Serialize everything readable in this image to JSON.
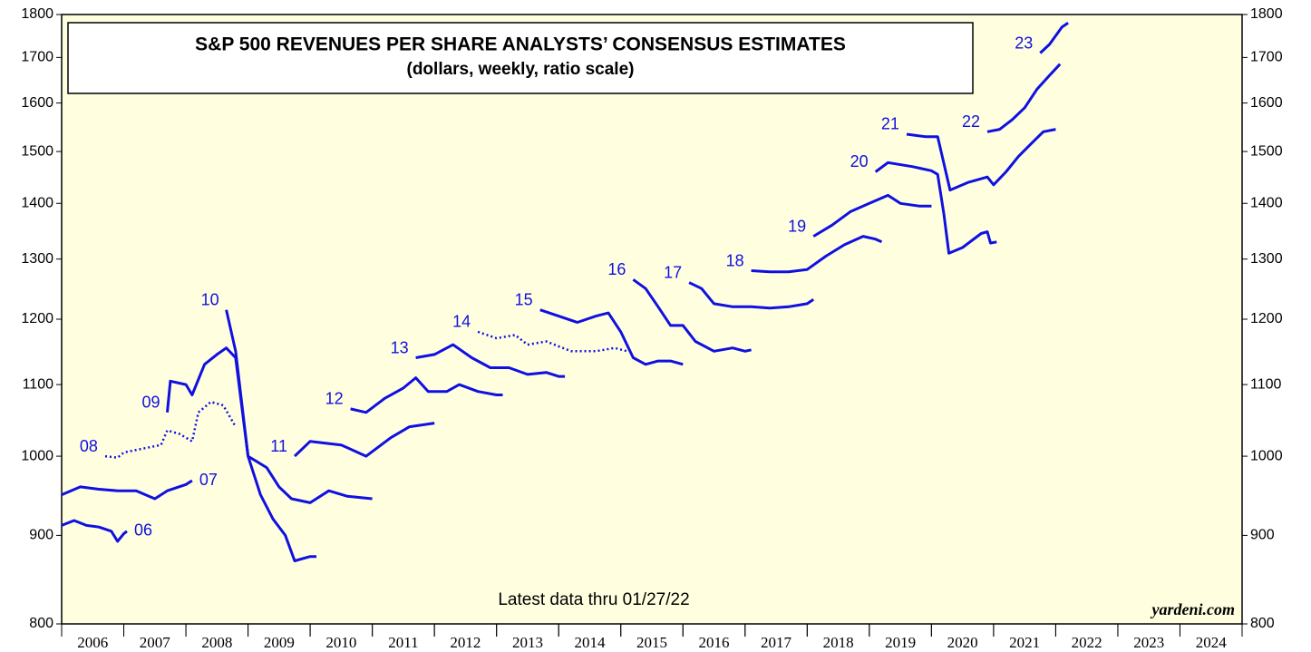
{
  "chart_data": {
    "type": "line",
    "title": "S&P 500 REVENUES PER SHARE ANALYSTS’ CONSENSUS ESTIMATES",
    "subtitle": "(dollars, weekly, ratio scale)",
    "annotation": "Latest data thru 01/27/22",
    "source": "yardeni.com",
    "log_scale": true,
    "background": "#ffffe0",
    "xlim": [
      2006,
      2025
    ],
    "xticks": [
      {
        "value": 2006.5,
        "label": "2006"
      },
      {
        "value": 2007.5,
        "label": "2007"
      },
      {
        "value": 2008.5,
        "label": "2008"
      },
      {
        "value": 2009.5,
        "label": "2009"
      },
      {
        "value": 2010.5,
        "label": "2010"
      },
      {
        "value": 2011.5,
        "label": "2011"
      },
      {
        "value": 2012.5,
        "label": "2012"
      },
      {
        "value": 2013.5,
        "label": "2013"
      },
      {
        "value": 2014.5,
        "label": "2014"
      },
      {
        "value": 2015.5,
        "label": "2015"
      },
      {
        "value": 2016.5,
        "label": "2016"
      },
      {
        "value": 2017.5,
        "label": "2017"
      },
      {
        "value": 2018.5,
        "label": "2018"
      },
      {
        "value": 2019.5,
        "label": "2019"
      },
      {
        "value": 2020.5,
        "label": "2020"
      },
      {
        "value": 2021.5,
        "label": "2021"
      },
      {
        "value": 2022.5,
        "label": "2022"
      },
      {
        "value": 2023.5,
        "label": "2023"
      },
      {
        "value": 2024.5,
        "label": "2024"
      }
    ],
    "ylim": [
      800,
      1800
    ],
    "yticks": [
      800,
      900,
      1000,
      1100,
      1200,
      1300,
      1400,
      1500,
      1600,
      1700,
      1800
    ],
    "series": [
      {
        "name": "06",
        "color": "#1010e0",
        "style": "solid",
        "x": [
          2006.0,
          2006.2,
          2006.4,
          2006.6,
          2006.8,
          2006.9,
          2007.0,
          2007.05
        ],
        "values": [
          912,
          918,
          912,
          910,
          905,
          893,
          902,
          905
        ]
      },
      {
        "name": "07",
        "color": "#1010e0",
        "style": "solid",
        "x": [
          2006.0,
          2006.3,
          2006.6,
          2006.9,
          2007.2,
          2007.5,
          2007.7,
          2008.0,
          2008.1
        ],
        "values": [
          950,
          960,
          957,
          955,
          955,
          945,
          955,
          963,
          968
        ]
      },
      {
        "name": "08",
        "color": "#1010e0",
        "style": "dotted",
        "x": [
          2006.7,
          2006.9,
          2007.0,
          2007.3,
          2007.6,
          2007.7,
          2007.9,
          2008.1,
          2008.2,
          2008.4,
          2008.6,
          2008.8
        ],
        "values": [
          1000,
          998,
          1005,
          1010,
          1015,
          1035,
          1030,
          1020,
          1060,
          1075,
          1070,
          1040
        ]
      },
      {
        "name": "09",
        "color": "#1010e0",
        "style": "solid",
        "x": [
          2007.7,
          2007.75,
          2008.0,
          2008.1,
          2008.3,
          2008.5,
          2008.65,
          2008.8,
          2009.0,
          2009.3,
          2009.5,
          2009.7,
          2010.0,
          2010.3,
          2010.6,
          2011.0
        ],
        "values": [
          1060,
          1105,
          1100,
          1085,
          1130,
          1145,
          1155,
          1140,
          1000,
          985,
          960,
          945,
          940,
          955,
          948,
          945
        ]
      },
      {
        "name": "10",
        "color": "#1010e0",
        "style": "solid",
        "x": [
          2008.65,
          2008.8,
          2009.0,
          2009.2,
          2009.4,
          2009.6,
          2009.75,
          2010.0,
          2010.1
        ],
        "values": [
          1215,
          1150,
          1000,
          950,
          920,
          900,
          870,
          875,
          875
        ]
      },
      {
        "name": "11",
        "color": "#1010e0",
        "style": "solid",
        "x": [
          2009.75,
          2010.0,
          2010.5,
          2010.9,
          2011.3,
          2011.6,
          2012.0
        ],
        "values": [
          1000,
          1020,
          1015,
          1000,
          1025,
          1040,
          1045
        ]
      },
      {
        "name": "12",
        "color": "#1010e0",
        "style": "solid",
        "x": [
          2010.65,
          2010.9,
          2011.2,
          2011.5,
          2011.7,
          2011.9,
          2012.2,
          2012.4,
          2012.7,
          2013.0,
          2013.1
        ],
        "values": [
          1065,
          1060,
          1080,
          1095,
          1110,
          1090,
          1090,
          1100,
          1090,
          1085,
          1085
        ]
      },
      {
        "name": "13",
        "color": "#1010e0",
        "style": "solid",
        "x": [
          2011.7,
          2012.0,
          2012.3,
          2012.6,
          2012.9,
          2013.2,
          2013.5,
          2013.8,
          2014.0,
          2014.1
        ],
        "values": [
          1140,
          1145,
          1160,
          1140,
          1125,
          1125,
          1115,
          1118,
          1112,
          1112
        ]
      },
      {
        "name": "14",
        "color": "#1010e0",
        "style": "dotted",
        "x": [
          2012.7,
          2013.0,
          2013.3,
          2013.5,
          2013.8,
          2014.2,
          2014.6,
          2014.9,
          2015.1
        ],
        "values": [
          1180,
          1170,
          1175,
          1160,
          1165,
          1150,
          1150,
          1155,
          1150
        ]
      },
      {
        "name": "15",
        "color": "#1010e0",
        "style": "solid",
        "x": [
          2013.7,
          2014.0,
          2014.3,
          2014.6,
          2014.8,
          2015.0,
          2015.2,
          2015.4,
          2015.6,
          2015.8,
          2016.0
        ],
        "values": [
          1215,
          1205,
          1195,
          1205,
          1210,
          1180,
          1140,
          1130,
          1135,
          1135,
          1130
        ]
      },
      {
        "name": "16",
        "color": "#1010e0",
        "style": "solid",
        "x": [
          2015.2,
          2015.4,
          2015.6,
          2015.8,
          2016.0,
          2016.2,
          2016.5,
          2016.8,
          2017.0,
          2017.1
        ],
        "values": [
          1265,
          1250,
          1220,
          1190,
          1190,
          1165,
          1150,
          1155,
          1150,
          1152
        ]
      },
      {
        "name": "17",
        "color": "#1010e0",
        "style": "solid",
        "x": [
          2016.1,
          2016.3,
          2016.5,
          2016.8,
          2017.1,
          2017.4,
          2017.7,
          2018.0,
          2018.1
        ],
        "values": [
          1260,
          1250,
          1225,
          1220,
          1220,
          1218,
          1220,
          1225,
          1232
        ]
      },
      {
        "name": "18",
        "color": "#1010e0",
        "style": "solid",
        "x": [
          2017.1,
          2017.4,
          2017.7,
          2018.0,
          2018.3,
          2018.6,
          2018.9,
          2019.1,
          2019.2
        ],
        "values": [
          1280,
          1278,
          1278,
          1282,
          1305,
          1325,
          1340,
          1335,
          1330
        ]
      },
      {
        "name": "19",
        "color": "#1010e0",
        "style": "solid",
        "x": [
          2018.1,
          2018.4,
          2018.7,
          2019.0,
          2019.3,
          2019.5,
          2019.8,
          2020.0
        ],
        "values": [
          1340,
          1360,
          1385,
          1400,
          1415,
          1400,
          1395,
          1395
        ]
      },
      {
        "name": "20",
        "color": "#1010e0",
        "style": "solid",
        "x": [
          2019.1,
          2019.3,
          2019.7,
          2020.0,
          2020.1,
          2020.2,
          2020.28,
          2020.5,
          2020.8,
          2020.9,
          2020.95,
          2021.05
        ],
        "values": [
          1460,
          1478,
          1470,
          1462,
          1455,
          1380,
          1310,
          1320,
          1345,
          1348,
          1328,
          1330
        ]
      },
      {
        "name": "21",
        "color": "#1010e0",
        "style": "solid",
        "x": [
          2019.6,
          2019.9,
          2020.1,
          2020.3,
          2020.6,
          2020.9,
          2021.0,
          2021.2,
          2021.4,
          2021.6,
          2021.8,
          2022.0
        ],
        "values": [
          1535,
          1530,
          1530,
          1425,
          1440,
          1450,
          1435,
          1460,
          1490,
          1515,
          1540,
          1545
        ]
      },
      {
        "name": "22",
        "color": "#1010e0",
        "style": "solid",
        "x": [
          2020.9,
          2021.1,
          2021.3,
          2021.5,
          2021.7,
          2021.9,
          2022.07
        ],
        "values": [
          1540,
          1545,
          1565,
          1590,
          1630,
          1660,
          1685
        ]
      },
      {
        "name": "23",
        "color": "#1010e0",
        "style": "solid",
        "x": [
          2021.75,
          2021.9,
          2022.1,
          2022.2
        ],
        "values": [
          1710,
          1730,
          1770,
          1780
        ]
      }
    ]
  }
}
